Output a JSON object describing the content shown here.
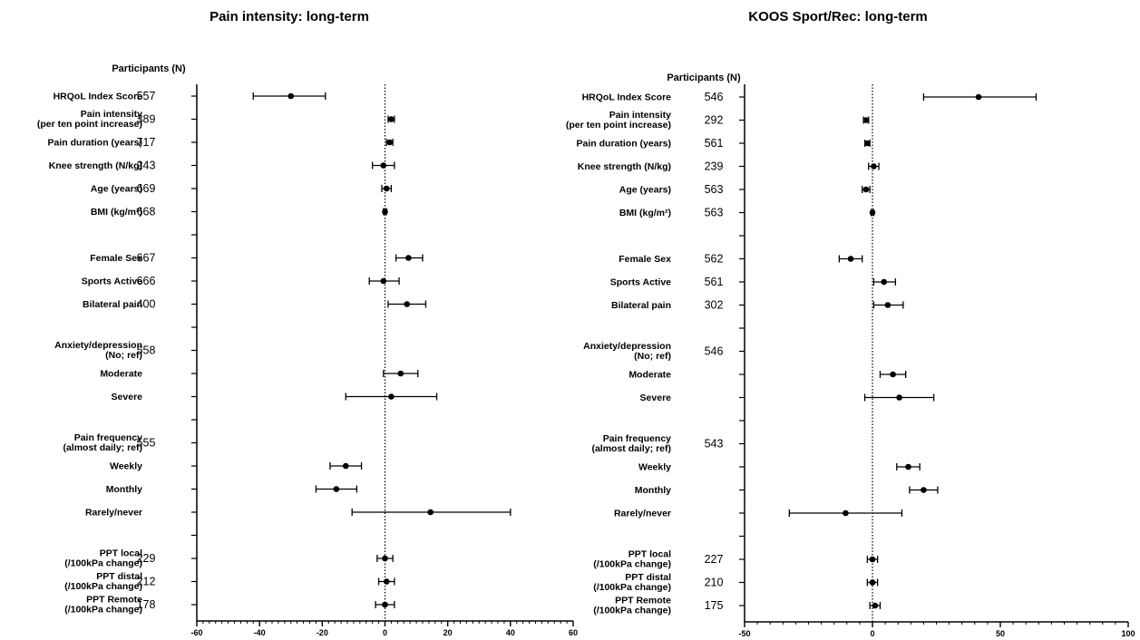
{
  "chart_data": [
    {
      "type": "forest",
      "title": "Pain intensity: long-term",
      "participants_header": "Participants (N)",
      "xlim": [
        -60,
        60
      ],
      "x_ticks": [
        -60,
        -40,
        -20,
        0,
        20,
        40,
        60
      ],
      "rows": [
        {
          "label": [
            "HRQoL Index Score"
          ],
          "n": "557",
          "est": -30,
          "lo": -42,
          "hi": -19
        },
        {
          "label": [
            "Pain intensity",
            "(per ten point increase)"
          ],
          "n": "389",
          "est": 2,
          "lo": 1,
          "hi": 3
        },
        {
          "label": [
            "Pain duration (years)"
          ],
          "n": "717",
          "est": 1.5,
          "lo": 0.5,
          "hi": 2.5
        },
        {
          "label": [
            "Knee strength (N/kg)"
          ],
          "n": "243",
          "est": -0.5,
          "lo": -4,
          "hi": 3
        },
        {
          "label": [
            "Age (years)"
          ],
          "n": "669",
          "est": 0.5,
          "lo": -1,
          "hi": 2
        },
        {
          "label": [
            "BMI (kg/m²)"
          ],
          "n": "668",
          "est": 0,
          "lo": -0.5,
          "hi": 0.5
        },
        {
          "label": [],
          "n": "",
          "est": null
        },
        {
          "label": [
            "Female Sex"
          ],
          "n": "667",
          "est": 7.5,
          "lo": 3.5,
          "hi": 12
        },
        {
          "label": [
            "Sports Active"
          ],
          "n": "666",
          "est": -0.5,
          "lo": -5,
          "hi": 4.5
        },
        {
          "label": [
            "Bilateral pain"
          ],
          "n": "400",
          "est": 7,
          "lo": 1,
          "hi": 13
        },
        {
          "label": [],
          "n": "",
          "est": null
        },
        {
          "label": [
            "Anxiety/depression",
            "(No; ref)"
          ],
          "n": "558",
          "est": null
        },
        {
          "label": [
            "Moderate"
          ],
          "n": "",
          "est": 5,
          "lo": -0.5,
          "hi": 10.5
        },
        {
          "label": [
            "Severe"
          ],
          "n": "",
          "est": 2,
          "lo": -12.5,
          "hi": 16.5
        },
        {
          "label": [],
          "n": "",
          "est": null
        },
        {
          "label": [
            "Pain frequency",
            "(almost daily; ref)"
          ],
          "n": "555",
          "est": null
        },
        {
          "label": [
            "Weekly"
          ],
          "n": "",
          "est": -12.5,
          "lo": -17.5,
          "hi": -7.5
        },
        {
          "label": [
            "Monthly"
          ],
          "n": "",
          "est": -15.5,
          "lo": -22,
          "hi": -9
        },
        {
          "label": [
            "Rarely/never"
          ],
          "n": "",
          "est": 14.5,
          "lo": -10.5,
          "hi": 40
        },
        {
          "label": [],
          "n": "",
          "est": null
        },
        {
          "label": [
            "PPT local",
            "(/100kPa change)"
          ],
          "n": "229",
          "est": 0,
          "lo": -2.5,
          "hi": 2.5
        },
        {
          "label": [
            "PPT distal",
            "(/100kPa change)"
          ],
          "n": "212",
          "est": 0.5,
          "lo": -2,
          "hi": 3
        },
        {
          "label": [
            "PPT Remote",
            "(/100kPa change)"
          ],
          "n": "178",
          "est": 0,
          "lo": -3,
          "hi": 3
        }
      ]
    },
    {
      "type": "forest",
      "title": "KOOS Sport/Rec: long-term",
      "participants_header": "Participants (N)",
      "xlim": [
        -50,
        100
      ],
      "x_ticks": [
        -50,
        0,
        50,
        100
      ],
      "rows": [
        {
          "label": [
            "HRQoL Index Score"
          ],
          "n": "546",
          "est": 41.5,
          "lo": 20,
          "hi": 64
        },
        {
          "label": [
            "Pain intensity",
            "(per ten point increase)"
          ],
          "n": "292",
          "est": -2.5,
          "lo": -3.5,
          "hi": -1.5
        },
        {
          "label": [
            "Pain duration (years)"
          ],
          "n": "561",
          "est": -2,
          "lo": -3,
          "hi": -1
        },
        {
          "label": [
            "Knee strength (N/kg)"
          ],
          "n": "239",
          "est": 0.5,
          "lo": -1.5,
          "hi": 2.5
        },
        {
          "label": [
            "Age (years)"
          ],
          "n": "563",
          "est": -2.5,
          "lo": -4,
          "hi": -1
        },
        {
          "label": [
            "BMI (kg/m²)"
          ],
          "n": "563",
          "est": 0,
          "lo": -0.5,
          "hi": 0.5
        },
        {
          "label": [],
          "n": "",
          "est": null
        },
        {
          "label": [
            "Female Sex"
          ],
          "n": "562",
          "est": -8.5,
          "lo": -13,
          "hi": -4
        },
        {
          "label": [
            "Sports Active"
          ],
          "n": "561",
          "est": 4.5,
          "lo": 0.5,
          "hi": 9
        },
        {
          "label": [
            "Bilateral pain"
          ],
          "n": "302",
          "est": 6,
          "lo": 0.5,
          "hi": 12
        },
        {
          "label": [],
          "n": "",
          "est": null
        },
        {
          "label": [
            "Anxiety/depression",
            "(No; ref)"
          ],
          "n": "546",
          "est": null
        },
        {
          "label": [
            "Moderate"
          ],
          "n": "",
          "est": 8,
          "lo": 3,
          "hi": 13
        },
        {
          "label": [
            "Severe"
          ],
          "n": "",
          "est": 10.5,
          "lo": -3,
          "hi": 24
        },
        {
          "label": [],
          "n": "",
          "est": null
        },
        {
          "label": [
            "Pain frequency",
            "(almost daily; ref)"
          ],
          "n": "543",
          "est": null
        },
        {
          "label": [
            "Weekly"
          ],
          "n": "",
          "est": 14,
          "lo": 9.5,
          "hi": 18.5
        },
        {
          "label": [
            "Monthly"
          ],
          "n": "",
          "est": 20,
          "lo": 14.5,
          "hi": 25.5
        },
        {
          "label": [
            "Rarely/never"
          ],
          "n": "",
          "est": -10.5,
          "lo": -32.5,
          "hi": 11.5
        },
        {
          "label": [],
          "n": "",
          "est": null
        },
        {
          "label": [
            "PPT local",
            "(/100kPa change)"
          ],
          "n": "227",
          "est": 0,
          "lo": -2,
          "hi": 2
        },
        {
          "label": [
            "PPT distal",
            "(/100kPa change)"
          ],
          "n": "210",
          "est": 0,
          "lo": -2,
          "hi": 2
        },
        {
          "label": [
            "PPT Remote",
            "(/100kPa change)"
          ],
          "n": "175",
          "est": 1,
          "lo": -1,
          "hi": 3
        }
      ]
    }
  ]
}
